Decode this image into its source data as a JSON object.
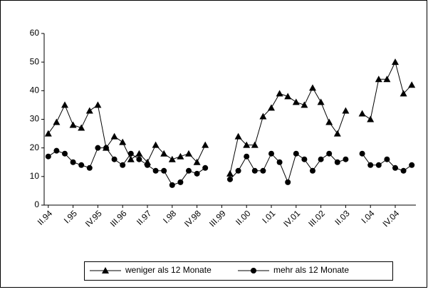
{
  "chart_data": {
    "type": "line",
    "categories": [
      "II.94",
      null,
      null,
      "I.95",
      null,
      null,
      "IV.95",
      null,
      null,
      "III.96",
      null,
      null,
      "II.97",
      null,
      null,
      "I.98",
      null,
      null,
      "IV.98",
      null,
      null,
      "III.99",
      null,
      null,
      "II.00",
      null,
      null,
      "I.01",
      null,
      null,
      "IV.01",
      null,
      null,
      "III.02",
      null,
      null,
      "II.03",
      null,
      null,
      "I.04",
      null,
      null,
      "IV.04",
      null,
      null
    ],
    "series": [
      {
        "name": "weniger als 12 Monate",
        "color": "#000000",
        "marker": "triangle",
        "values": [
          25,
          29,
          35,
          28,
          27,
          33,
          35,
          20,
          24,
          22,
          16,
          18,
          15,
          21,
          18,
          16,
          17,
          18,
          15,
          21,
          null,
          null,
          11,
          24,
          21,
          21,
          31,
          34,
          39,
          38,
          36,
          35,
          41,
          36,
          29,
          25,
          33,
          null,
          32,
          30,
          44,
          44,
          50,
          39,
          42
        ]
      },
      {
        "name": "mehr als 12 Monate",
        "color": "#000000",
        "marker": "circle",
        "values": [
          17,
          19,
          18,
          15,
          14,
          13,
          20,
          20,
          16,
          14,
          18,
          16,
          14,
          12,
          12,
          7,
          8,
          12,
          11,
          13,
          null,
          null,
          9,
          12,
          17,
          12,
          12,
          18,
          15,
          8,
          18,
          16,
          12,
          16,
          18,
          15,
          16,
          null,
          18,
          14,
          14,
          16,
          13,
          12,
          14
        ]
      }
    ],
    "ylim": [
      0,
      60
    ],
    "yticks": [
      0,
      10,
      20,
      30,
      40,
      50,
      60
    ],
    "grid": false,
    "legend": "bottom"
  }
}
